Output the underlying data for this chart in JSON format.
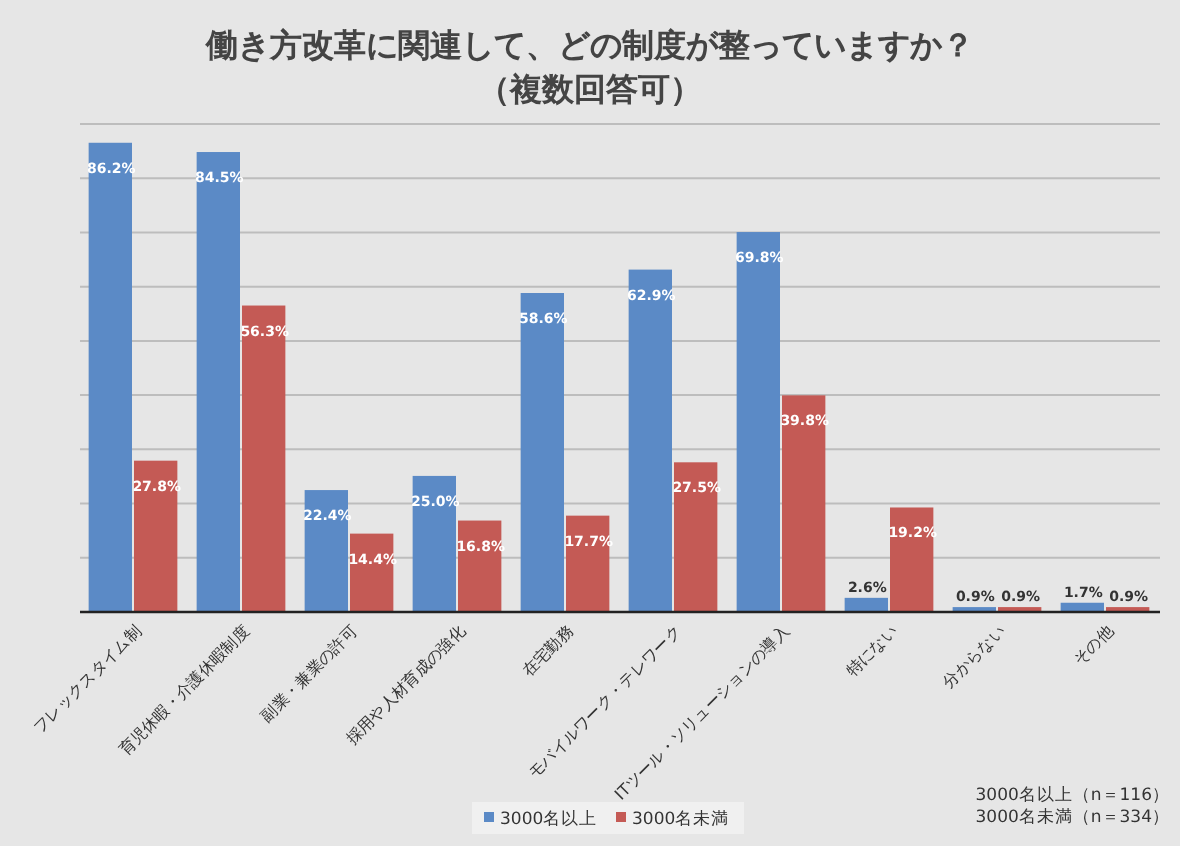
{
  "chart_data": {
    "type": "bar",
    "title": "働き方改革に関連して、どの制度が整っていますか？",
    "subtitle": "（複数回答可）",
    "categories": [
      "フレックスタイム制",
      "育児休暇・介護休暇制度",
      "副業・兼業の許可",
      "採用や人材育成の強化",
      "在宅勤務",
      "モバイルワーク・テレワーク",
      "ITツール・ソリューションの導入",
      "特にない",
      "分からない",
      "その他"
    ],
    "series": [
      {
        "name": "3000名以上",
        "color": "#5b8ac6",
        "values": [
          86.2,
          84.5,
          22.4,
          25.0,
          58.6,
          62.9,
          69.8,
          2.6,
          0.9,
          1.7
        ],
        "value_labels": [
          "86.2%",
          "84.5%",
          "22.4%",
          "25.0%",
          "58.6%",
          "62.9%",
          "69.8%",
          "2.6%",
          "0.9%",
          "1.7%"
        ]
      },
      {
        "name": "3000名未満",
        "color": "#c45a55",
        "values": [
          27.8,
          56.3,
          14.4,
          16.8,
          17.7,
          27.5,
          39.8,
          19.2,
          0.9,
          0.9
        ],
        "value_labels": [
          "27.8%",
          "56.3%",
          "14.4%",
          "16.8%",
          "17.7%",
          "27.5%",
          "39.8%",
          "19.2%",
          "0.9%",
          "0.9%"
        ]
      }
    ],
    "grid": true,
    "legend": "bottom",
    "annotations": [
      "3000名以上（n＝116）",
      "3000名未満（n＝334）"
    ]
  }
}
